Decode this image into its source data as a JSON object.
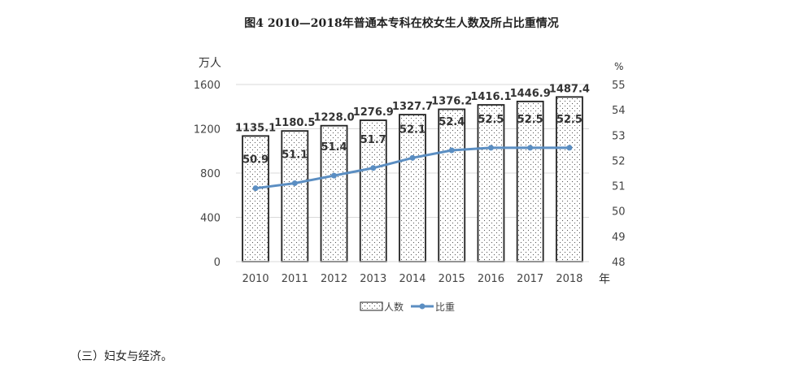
{
  "document": {
    "section_text": "（三）妇女与经济。"
  },
  "chart_data": {
    "type": "bar+line",
    "title": "图4    2010—2018年普通本专科在校女生人数及所占比重情况",
    "categories": [
      "2010",
      "2011",
      "2012",
      "2013",
      "2014",
      "2015",
      "2016",
      "2017",
      "2018"
    ],
    "xlabel": "年",
    "ylabel_left": "万人",
    "ylabel_right": "%",
    "ylim_left": [
      0,
      1600
    ],
    "yticks_left": [
      0,
      400,
      800,
      1200,
      1600
    ],
    "ylim_right": [
      48,
      55
    ],
    "yticks_right": [
      48,
      49,
      50,
      51,
      52,
      53,
      54,
      55
    ],
    "grid": true,
    "legend_position": "bottom",
    "series": [
      {
        "name": "人数",
        "type": "bar",
        "axis": "left",
        "pattern": "dotted",
        "values": [
          1135.1,
          1180.5,
          1228.0,
          1276.9,
          1327.7,
          1376.2,
          1416.1,
          1446.9,
          1487.4
        ],
        "labels": [
          "1135.1",
          "1180.5",
          "1228.0",
          "1276.9",
          "1327.7",
          "1376.2",
          "1416.1",
          "1446.9",
          "1487.4"
        ]
      },
      {
        "name": "比重",
        "type": "line",
        "axis": "right",
        "color": "#5b8ec2",
        "values": [
          50.9,
          51.1,
          51.4,
          51.7,
          52.1,
          52.4,
          52.5,
          52.5,
          52.5
        ],
        "labels": [
          "50.9",
          "51.1",
          "51.4",
          "51.7",
          "52.1",
          "52.4",
          "52.5",
          "52.5",
          "52.5"
        ]
      }
    ]
  }
}
